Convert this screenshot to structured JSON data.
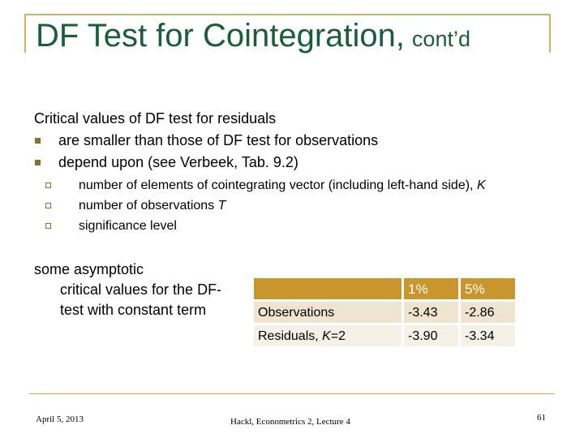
{
  "title": {
    "main": "DF Test for Cointegration,",
    "suffix": "cont’d"
  },
  "intro": "Critical values of DF test for residuals",
  "bullets": [
    "are smaller than those of DF test for observations",
    "depend upon (see Verbeek, Tab. 9.2)"
  ],
  "sub_bullets": {
    "item1_text": "number of elements of cointegrating vector (including left-hand side), ",
    "item1_var": "K",
    "item2_text": "number of observations ",
    "item2_var": "T",
    "item3_text": "significance level"
  },
  "asymptotic_text": {
    "line1": "some asymptotic",
    "line2": "critical values for the DF-",
    "line3": "test with constant term"
  },
  "table": {
    "header": [
      "",
      "1%",
      "5%"
    ],
    "rows": [
      {
        "label": "Observations",
        "label_var": "",
        "label_tail": "",
        "v1": "-3.43",
        "v5": "-2.86"
      },
      {
        "label": "Residuals, ",
        "label_var": "K",
        "label_tail": "=2",
        "v1": "-3.90",
        "v5": "-3.34"
      }
    ]
  },
  "footer": {
    "date": "April 5, 2013",
    "center": "Hackl, Econometrics 2, Lecture 4",
    "page": "61"
  },
  "colors": {
    "title": "#1a5c3e",
    "accent": "#c8962c",
    "row_odd": "#eee4cf",
    "row_even": "#f6f1e7",
    "bullet": "#8e6f2a"
  }
}
